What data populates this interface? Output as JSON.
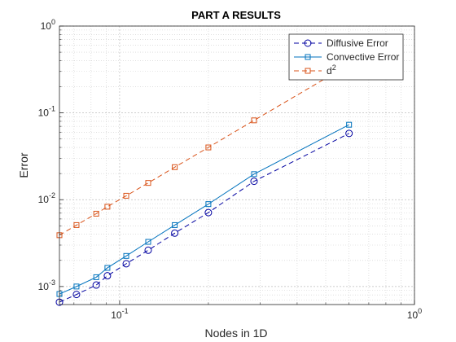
{
  "chart_data": {
    "type": "line",
    "title": "PART A RESULTS",
    "xlabel": "Nodes in 1D",
    "ylabel": "Error",
    "xscale": "log",
    "yscale": "log",
    "xlim": [
      0.0625,
      1
    ],
    "ylim": [
      0.00062,
      1
    ],
    "grid": true,
    "minor_grid": true,
    "legend_position": "top-right",
    "x": [
      0.0625,
      0.0714,
      0.0833,
      0.0909,
      0.1053,
      0.125,
      0.1538,
      0.2,
      0.2857,
      0.6
    ],
    "x_ticks": [
      {
        "value": 0.1,
        "base": "10",
        "exp": "-1"
      },
      {
        "value": 1,
        "base": "10",
        "exp": "0"
      }
    ],
    "y_ticks": [
      {
        "value": 0.001,
        "base": "10",
        "exp": "-3"
      },
      {
        "value": 0.01,
        "base": "10",
        "exp": "-2"
      },
      {
        "value": 0.1,
        "base": "10",
        "exp": "-1"
      },
      {
        "value": 1,
        "base": "10",
        "exp": "0"
      }
    ],
    "series": [
      {
        "name": "Diffusive Error",
        "color": "#0000a0",
        "line": "dashed",
        "marker": "circle",
        "values": [
          0.00066,
          0.00081,
          0.00104,
          0.00133,
          0.00183,
          0.00262,
          0.00412,
          0.0071,
          0.0163,
          0.058
        ]
      },
      {
        "name": "Convective Error",
        "color": "#0072bd",
        "line": "solid",
        "marker": "square",
        "values": [
          0.00082,
          0.001,
          0.00128,
          0.00164,
          0.00225,
          0.00327,
          0.0051,
          0.0089,
          0.0197,
          0.073
        ]
      },
      {
        "name": "d",
        "name_superscript": "2",
        "color": "#d95319",
        "line": "dashed",
        "marker": "square",
        "values": [
          0.0039,
          0.0051,
          0.0069,
          0.0083,
          0.0111,
          0.0156,
          0.0237,
          0.04,
          0.082,
          0.36
        ]
      }
    ]
  }
}
